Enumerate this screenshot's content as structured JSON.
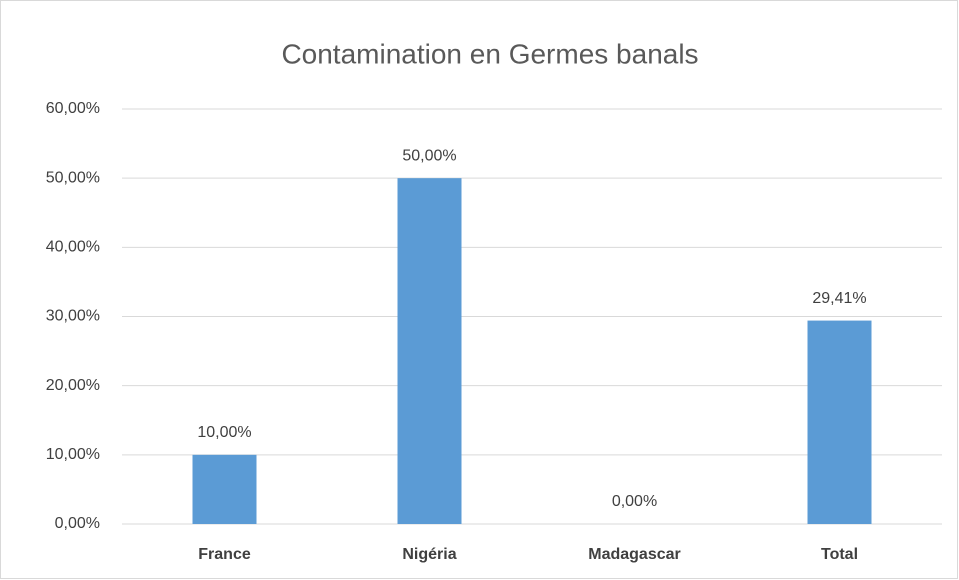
{
  "chart_data": {
    "type": "bar",
    "title": "Contamination en Germes banals",
    "categories": [
      "France",
      "Nigéria",
      "Madagascar",
      "Total"
    ],
    "values": [
      10,
      50,
      0,
      29.41
    ],
    "value_labels": [
      "10,00%",
      "50,00%",
      "0,00%",
      "29,41%"
    ],
    "color": "#5b9bd5",
    "ylim": [
      0,
      60
    ],
    "yticks": [
      {
        "value": 0,
        "label": "0,00%"
      },
      {
        "value": 10,
        "label": "10,00%"
      },
      {
        "value": 20,
        "label": "20,00%"
      },
      {
        "value": 30,
        "label": "30,00%"
      },
      {
        "value": 40,
        "label": "40,00%"
      },
      {
        "value": 50,
        "label": "50,00%"
      },
      {
        "value": 60,
        "label": "60,00%"
      }
    ],
    "grid": true
  }
}
